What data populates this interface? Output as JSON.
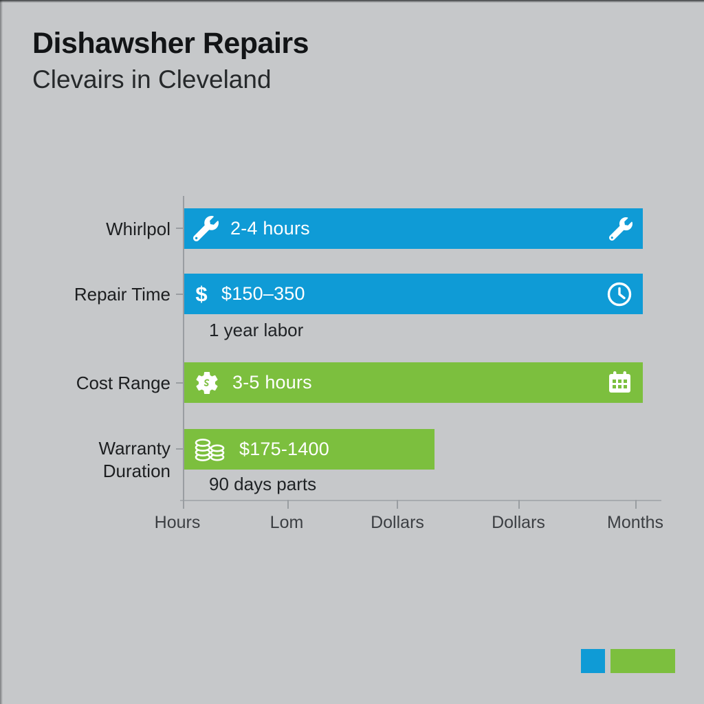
{
  "header": {
    "title": "Dishawsher Repairs",
    "subtitle": "Clevairs in Cleveland"
  },
  "chart_data": {
    "type": "bar",
    "orientation": "horizontal",
    "title": "Dishawsher Repairs",
    "subtitle": "Clevairs in Cleveland",
    "categories": [
      "Whirlpol",
      "Repair Time",
      "Cost Range",
      "Warranty Duration"
    ],
    "x_axis_labels": [
      "Hours",
      "Lom",
      "Dollars",
      "Dollars",
      "Months"
    ],
    "bars": [
      {
        "category_row": "Whirlpol",
        "value_label": "2-4 hours",
        "color": "#0f9bd6",
        "length_frac": 1.0,
        "left_icon": "wrench-icon",
        "right_icon": "wrench-icon"
      },
      {
        "category_row": "Repair Time",
        "value_label": "$150–350",
        "color": "#0f9bd6",
        "length_frac": 1.0,
        "left_icon": "dollar-icon",
        "right_icon": "clock-icon",
        "annotation": "1 year labor"
      },
      {
        "category_row": "Cost Range",
        "value_label": "3-5 hours",
        "color": "#7cbf3e",
        "length_frac": 1.0,
        "left_icon": "gear-icon",
        "right_icon": "calendar-icon"
      },
      {
        "category_row": "Warranty Duration",
        "value_label": "$175-1400",
        "color": "#7cbf3e",
        "length_frac": 0.545,
        "left_icon": "coins-icon",
        "annotation": "90 days parts"
      }
    ],
    "legend": [
      {
        "name": "blue-series",
        "color": "#0f9bd6"
      },
      {
        "name": "green-series",
        "color": "#7cbf3e"
      }
    ],
    "axis": {
      "grid": false,
      "numeric_labels": false
    },
    "layout": {
      "legend_position": "bottom-right"
    }
  },
  "icons": {
    "dollar_glyph": "$"
  },
  "colors": {
    "blue": "#0f9bd6",
    "green": "#7cbf3e",
    "background": "#c6c8ca",
    "axis": "#999da1",
    "title_text": "#121416",
    "body_text": "#1f2225",
    "bar_text": "#ffffff"
  }
}
